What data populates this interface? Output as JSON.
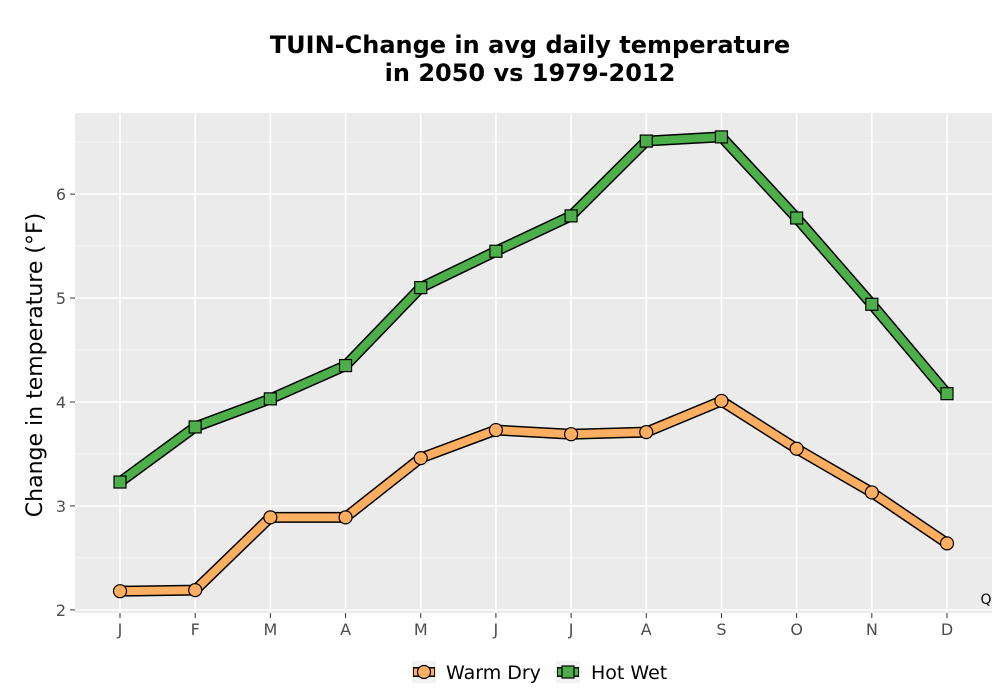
{
  "chart_data": {
    "type": "line",
    "title_line1": "TUIN-Change in avg daily temperature",
    "title_line2": "in 2050 vs 1979-2012",
    "xlabel": "",
    "ylabel": "Change in temperature (°F)",
    "categories": [
      "J",
      "F",
      "M",
      "A",
      "M",
      "J",
      "J",
      "A",
      "S",
      "O",
      "N",
      "D"
    ],
    "ylim": [
      1.97,
      6.78
    ],
    "yticks": [
      2,
      3,
      4,
      5,
      6
    ],
    "grid": true,
    "legend_position": "bottom",
    "corner_note": "Q",
    "series": [
      {
        "name": "Warm Dry",
        "color": "#fdae61",
        "marker": "circle",
        "values": [
          2.18,
          2.19,
          2.89,
          2.89,
          3.46,
          3.73,
          3.69,
          3.71,
          4.01,
          3.55,
          3.13,
          2.64
        ]
      },
      {
        "name": "Hot Wet",
        "color": "#4daf4a",
        "marker": "square",
        "values": [
          3.23,
          3.76,
          4.03,
          4.35,
          5.1,
          5.45,
          5.79,
          6.51,
          6.55,
          5.77,
          4.94,
          4.08
        ]
      }
    ]
  }
}
